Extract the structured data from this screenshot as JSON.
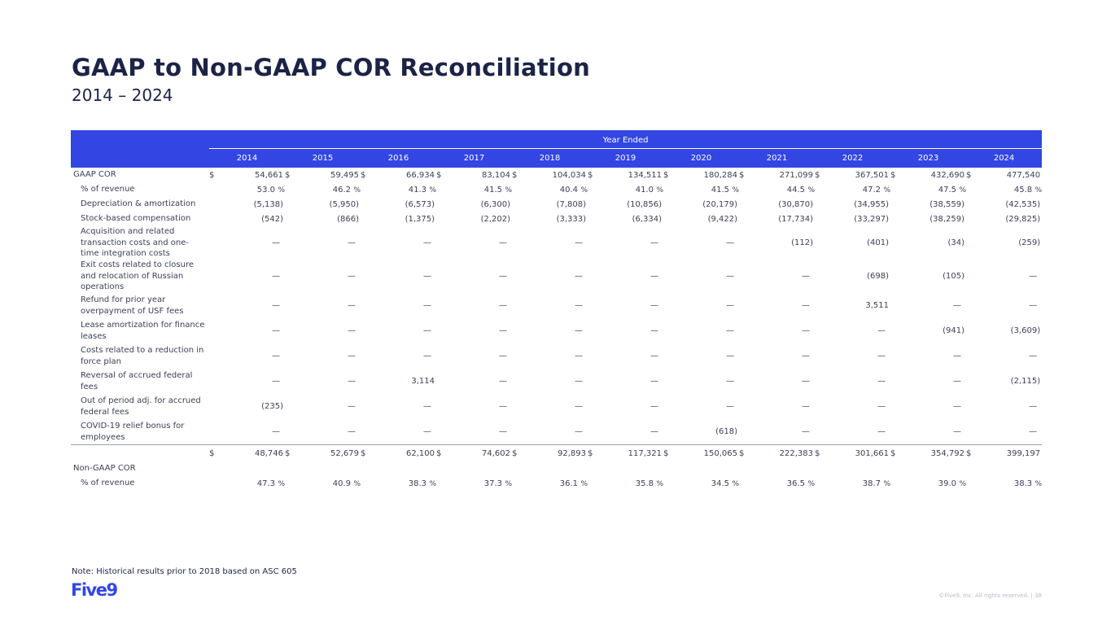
{
  "page": {
    "title": "GAAP to Non-GAAP COR Reconciliation",
    "subtitle": "2014 – 2024",
    "note": "Note: Historical results prior to 2018 based on ASC 605",
    "footer": "©Five9, Inc. All rights reserved. | 38",
    "logo_text": "Five9",
    "accent_color": "#3346e3"
  },
  "table": {
    "year_ended_label": "Year Ended",
    "years": [
      "2014",
      "2015",
      "2016",
      "2017",
      "2018",
      "2019",
      "2020",
      "2021",
      "2022",
      "2023",
      "2024"
    ],
    "currency_symbol": "$",
    "percent_symbol": "%",
    "gaap_cor": {
      "label": "GAAP COR",
      "values": [
        "54,661",
        "59,495",
        "66,934",
        "83,104",
        "104,034",
        "134,511",
        "180,284",
        "271,099",
        "367,501",
        "432,690",
        "477,540"
      ]
    },
    "gaap_pct_revenue": {
      "label": "% of revenue",
      "values": [
        "53.0",
        "46.2",
        "41.3",
        "41.5",
        "40.4",
        "41.0",
        "41.5",
        "44.5",
        "47.2",
        "47.5",
        "45.8"
      ]
    },
    "adjustments": [
      {
        "label": "Depreciation & amortization",
        "values": [
          "(5,138)",
          "(5,950)",
          "(6,573)",
          "(6,300)",
          "(7,808)",
          "(10,856)",
          "(20,179)",
          "(30,870)",
          "(34,955)",
          "(38,559)",
          "(42,535)"
        ]
      },
      {
        "label": "Stock-based compensation",
        "values": [
          "(542)",
          "(866)",
          "(1,375)",
          "(2,202)",
          "(3,333)",
          "(6,334)",
          "(9,422)",
          "(17,734)",
          "(33,297)",
          "(38,259)",
          "(29,825)"
        ]
      },
      {
        "label": "Acquisition and related transaction costs and one-time integration costs",
        "values": [
          "—",
          "—",
          "—",
          "—",
          "—",
          "—",
          "—",
          "(112)",
          "(401)",
          "(34)",
          "(259)"
        ]
      },
      {
        "label": "Exit costs related to closure and relocation of Russian operations",
        "values": [
          "—",
          "—",
          "—",
          "—",
          "—",
          "—",
          "—",
          "—",
          "(698)",
          "(105)",
          "—"
        ]
      },
      {
        "label": "Refund for prior year overpayment of USF fees",
        "values": [
          "—",
          "—",
          "—",
          "—",
          "—",
          "—",
          "—",
          "—",
          "3,511",
          "—",
          "—"
        ]
      },
      {
        "label": "Lease amortization for finance leases",
        "values": [
          "—",
          "—",
          "—",
          "—",
          "—",
          "—",
          "—",
          "—",
          "—",
          "(941)",
          "(3,609)"
        ]
      },
      {
        "label": "Costs related to a reduction in force plan",
        "values": [
          "—",
          "—",
          "—",
          "—",
          "—",
          "—",
          "—",
          "—",
          "—",
          "—",
          "—"
        ]
      },
      {
        "label": "Reversal of accrued federal fees",
        "values": [
          "—",
          "—",
          "3,114",
          "—",
          "—",
          "—",
          "—",
          "—",
          "—",
          "—",
          "(2,115)"
        ]
      },
      {
        "label": "Out of period adj. for accrued federal fees",
        "values": [
          "(235)",
          "—",
          "—",
          "—",
          "—",
          "—",
          "—",
          "—",
          "—",
          "—",
          "—"
        ]
      },
      {
        "label": "COVID-19 relief bonus for employees",
        "values": [
          "—",
          "—",
          "—",
          "—",
          "—",
          "—",
          "(618)",
          "—",
          "—",
          "—",
          "—"
        ]
      }
    ],
    "non_gaap_cor": {
      "label": "Non-GAAP COR",
      "values": [
        "48,746",
        "52,679",
        "62,100",
        "74,602",
        "92,893",
        "117,321",
        "150,065",
        "222,383",
        "301,661",
        "354,792",
        "399,197"
      ]
    },
    "non_gaap_pct_revenue": {
      "label": "% of revenue",
      "values": [
        "47.3",
        "40.9",
        "38.3",
        "37.3",
        "36.1",
        "35.8",
        "34.5",
        "36.5",
        "38.7",
        "39.0",
        "38.3"
      ]
    }
  }
}
